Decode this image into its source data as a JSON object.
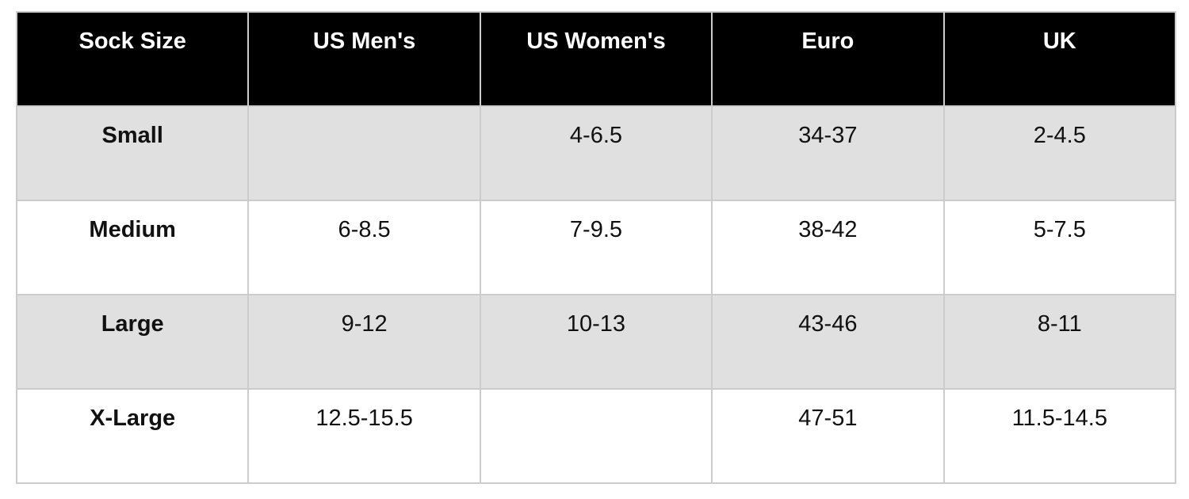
{
  "chart_data": {
    "type": "table",
    "columns": [
      "Sock Size",
      "US Men's",
      "US Women's",
      "Euro",
      "UK"
    ],
    "rows": [
      [
        "Small",
        "",
        "4-6.5",
        "34-37",
        "2-4.5"
      ],
      [
        "Medium",
        "6-8.5",
        "7-9.5",
        "38-42",
        "5-7.5"
      ],
      [
        "Large",
        "9-12",
        "10-13",
        "43-46",
        "8-11"
      ],
      [
        "X-Large",
        "12.5-15.5",
        "",
        "47-51",
        "11.5-14.5"
      ]
    ]
  },
  "colors": {
    "header_bg": "#000000",
    "header_text": "#ffffff",
    "row_alt_bg": "#e0e0e0",
    "row_bg": "#ffffff",
    "border": "#cccccc",
    "cell_text": "#111111"
  }
}
